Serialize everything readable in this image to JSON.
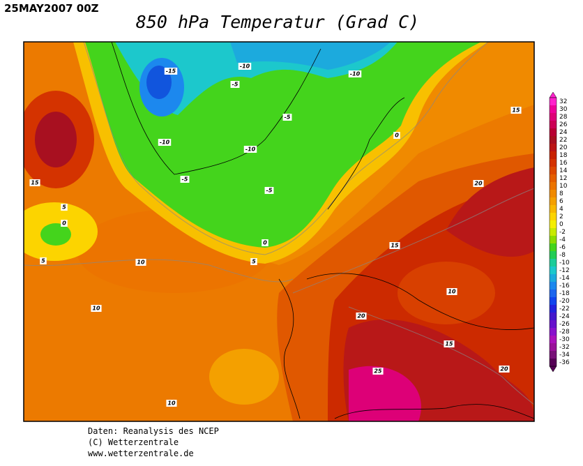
{
  "header": {
    "timestamp": "25MAY2007 00Z",
    "title": "850 hPa Temperatur (Grad C)"
  },
  "contour_labels": [
    -15,
    -10,
    -10,
    -5,
    -5,
    -10,
    -10,
    -5,
    -5,
    0,
    15,
    15,
    5,
    0,
    5,
    0,
    5,
    10,
    20,
    15,
    10,
    10,
    20,
    15,
    20,
    25,
    10
  ],
  "colorbar": {
    "levels": [
      32,
      30,
      28,
      26,
      24,
      22,
      20,
      18,
      16,
      14,
      12,
      10,
      8,
      6,
      4,
      2,
      0,
      -2,
      -4,
      -6,
      -8,
      -10,
      -12,
      -14,
      -16,
      -18,
      -20,
      -22,
      -24,
      -26,
      -28,
      -30,
      -32,
      -34,
      -36
    ],
    "colors": [
      "#ff22cc",
      "#ee0099",
      "#dd0077",
      "#cc0055",
      "#b80033",
      "#a81020",
      "#bb1515",
      "#c82200",
      "#d43300",
      "#dd4800",
      "#e55e00",
      "#ec7400",
      "#f08a00",
      "#f4a000",
      "#f8b800",
      "#fcd400",
      "#f4ee00",
      "#c8ea00",
      "#8cdc00",
      "#44d41c",
      "#22cc55",
      "#1ccc99",
      "#1cc8cc",
      "#1caadd",
      "#1c88ee",
      "#1c66ee",
      "#1144ee",
      "#2222dd",
      "#4418cc",
      "#6611cc",
      "#8811cc",
      "#aa11bb",
      "#991199",
      "#771177",
      "#550055"
    ]
  },
  "footer": {
    "lines": [
      "Daten: Reanalysis des NCEP",
      "(C) Wetterzentrale",
      "www.wetterzentrale.de"
    ]
  }
}
